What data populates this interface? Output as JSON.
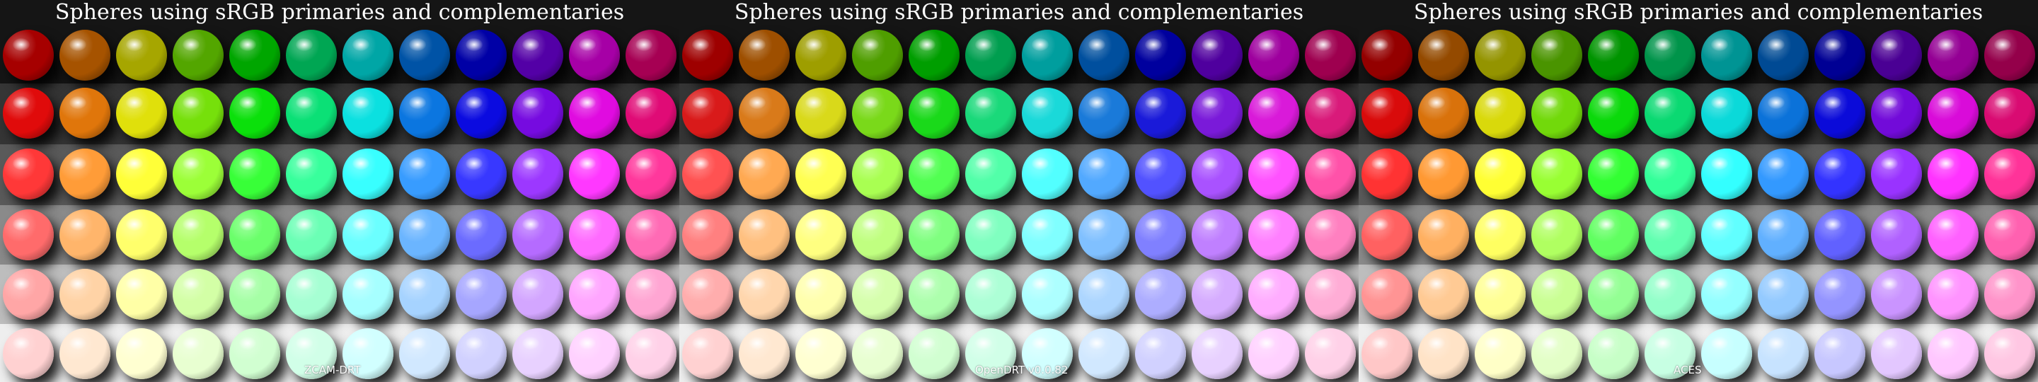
{
  "hues": [
    "#ff0000",
    "#ff8000",
    "#ffff00",
    "#80ff00",
    "#00ff00",
    "#00ff80",
    "#00ffff",
    "#0080ff",
    "#0000ff",
    "#8000ff",
    "#ff00ff",
    "#ff0080"
  ],
  "row_backgrounds": [
    "#151515",
    "#353535",
    "#5a5a5a",
    "#8a8a8a",
    "#bdbdbd",
    "#eeeeee"
  ],
  "panels": [
    {
      "title": "Spheres using sRGB primaries and complementaries",
      "label": "ZCAM-DRT",
      "style": "zcam"
    },
    {
      "title": "Spheres using sRGB primaries and complementaries",
      "label": "OpenDRT v0.0.82",
      "style": "open"
    },
    {
      "title": "Spheres using sRGB primaries and complementaries",
      "label": "ACES",
      "style": "aces"
    }
  ]
}
